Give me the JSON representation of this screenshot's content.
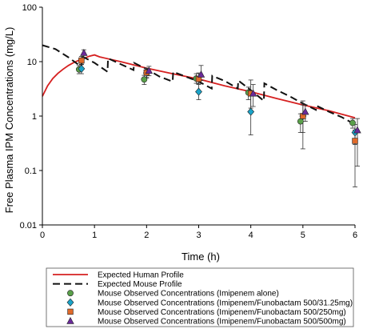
{
  "chart_data": {
    "type": "line",
    "xlabel": "Time (h)",
    "ylabel": "Free Plasma IPM Concentrations (mg/L)",
    "xlim": [
      0,
      6
    ],
    "ylim": [
      0.01,
      100
    ],
    "yscale": "log",
    "x_ticks": [
      "0",
      "1",
      "2",
      "3",
      "4",
      "5",
      "6"
    ],
    "y_ticks": [
      "0.01",
      "0.1",
      "1",
      "10",
      "100"
    ],
    "x_tick_values": [
      0,
      1,
      2,
      3,
      4,
      5,
      6
    ],
    "y_tick_values": [
      0.01,
      0.1,
      1,
      10,
      100
    ],
    "grid": false,
    "legend_position": "bottom",
    "series": [
      {
        "name": "Expected Human Profile",
        "kind": "line",
        "color": "#d62020",
        "dash": "solid",
        "points": [
          [
            0,
            2.3
          ],
          [
            0.1,
            3.6
          ],
          [
            0.2,
            4.9
          ],
          [
            0.3,
            6.1
          ],
          [
            0.4,
            7.3
          ],
          [
            0.5,
            8.5
          ],
          [
            0.6,
            9.6
          ],
          [
            0.7,
            10.6
          ],
          [
            0.8,
            11.5
          ],
          [
            0.9,
            12.6
          ],
          [
            1.0,
            13.3
          ],
          [
            1.1,
            12.2
          ],
          [
            1.5,
            10.0
          ],
          [
            2.0,
            7.6
          ],
          [
            2.5,
            6.0
          ],
          [
            3.0,
            4.8
          ],
          [
            3.5,
            3.6
          ],
          [
            4.0,
            2.8
          ],
          [
            4.5,
            2.1
          ],
          [
            5.0,
            1.6
          ],
          [
            5.5,
            1.25
          ],
          [
            6.0,
            0.93
          ]
        ]
      },
      {
        "name": "Expected Mouse Profile",
        "kind": "line",
        "color": "#111111",
        "dash": "dashed",
        "points": [
          [
            0,
            20
          ],
          [
            0.25,
            17
          ],
          [
            0.5,
            12
          ],
          [
            0.75,
            8
          ],
          [
            0.76,
            12.5
          ],
          [
            1.0,
            9.5
          ],
          [
            1.25,
            6.5
          ],
          [
            1.26,
            11.5
          ],
          [
            1.5,
            9.0
          ],
          [
            1.75,
            7.0
          ],
          [
            1.76,
            9.5
          ],
          [
            2.0,
            7.3
          ],
          [
            2.25,
            5.3
          ],
          [
            2.5,
            4.3
          ],
          [
            2.51,
            6.5
          ],
          [
            2.75,
            5.3
          ],
          [
            3.0,
            4.3
          ],
          [
            3.25,
            3.2
          ],
          [
            3.26,
            5.5
          ],
          [
            3.5,
            4.4
          ],
          [
            3.75,
            3.2
          ],
          [
            3.76,
            4.5
          ],
          [
            4.0,
            3.0
          ],
          [
            4.25,
            1.9
          ],
          [
            4.26,
            4.0
          ],
          [
            4.5,
            3.0
          ],
          [
            4.75,
            2.3
          ],
          [
            5.0,
            1.7
          ],
          [
            5.25,
            1.3
          ],
          [
            5.26,
            1.55
          ],
          [
            5.5,
            1.2
          ],
          [
            5.75,
            0.95
          ],
          [
            6.0,
            0.7
          ]
        ]
      },
      {
        "name": "Mouse Observed Concentrations (Imipenem alone)",
        "kind": "points",
        "marker": "circle",
        "color": "#5aa04a",
        "points": [
          [
            0.75,
            7.2,
            6.0,
            8.5
          ],
          [
            2.0,
            4.7,
            3.8,
            5.6
          ],
          [
            3.0,
            4.9,
            4.0,
            6.0
          ],
          [
            4.0,
            2.7,
            2.0,
            3.4
          ],
          [
            5.0,
            0.8,
            0.5,
            1.1
          ],
          [
            6.0,
            0.75,
            0.6,
            0.9
          ]
        ]
      },
      {
        "name": "Mouse Observed Concentrations (Imipenem/Funobactam 500/31.25mg)",
        "kind": "points",
        "marker": "diamond",
        "color": "#1aa3c8",
        "points": [
          [
            0.75,
            7.4,
            6.0,
            9.0
          ],
          [
            2.0,
            6.2,
            5.0,
            7.4
          ],
          [
            3.0,
            2.8,
            2.0,
            3.8
          ],
          [
            4.0,
            1.2,
            0.45,
            2.6
          ],
          [
            5.0,
            1.0,
            0.25,
            1.6
          ],
          [
            6.0,
            0.5,
            0.3,
            0.7
          ]
        ]
      },
      {
        "name": "Mouse Observed Concentrations (Imipenem/Funobactam 500/250mg)",
        "kind": "points",
        "marker": "square",
        "color": "#e06a2a",
        "points": [
          [
            0.75,
            10.5,
            8.8,
            12.5
          ],
          [
            2.0,
            6.3,
            5.1,
            7.6
          ],
          [
            3.0,
            4.8,
            3.9,
            6.2
          ],
          [
            4.0,
            2.6,
            1.4,
            4.6
          ],
          [
            5.0,
            1.0,
            0.5,
            1.9
          ],
          [
            6.0,
            0.35,
            0.05,
            0.55
          ]
        ]
      },
      {
        "name": "Mouse Observed Concentrations (Imipenem/Funobactam 500/500mg)",
        "kind": "points",
        "marker": "triangle",
        "color": "#6a2a9a",
        "points": [
          [
            0.75,
            14.5,
            12.0,
            16.5
          ],
          [
            2.0,
            6.8,
            5.5,
            8.2
          ],
          [
            3.0,
            5.8,
            4.5,
            8.5
          ],
          [
            4.0,
            2.6,
            1.5,
            3.8
          ],
          [
            5.0,
            1.2,
            0.8,
            1.6
          ],
          [
            6.0,
            0.55,
            0.12,
            0.9
          ]
        ]
      }
    ]
  }
}
